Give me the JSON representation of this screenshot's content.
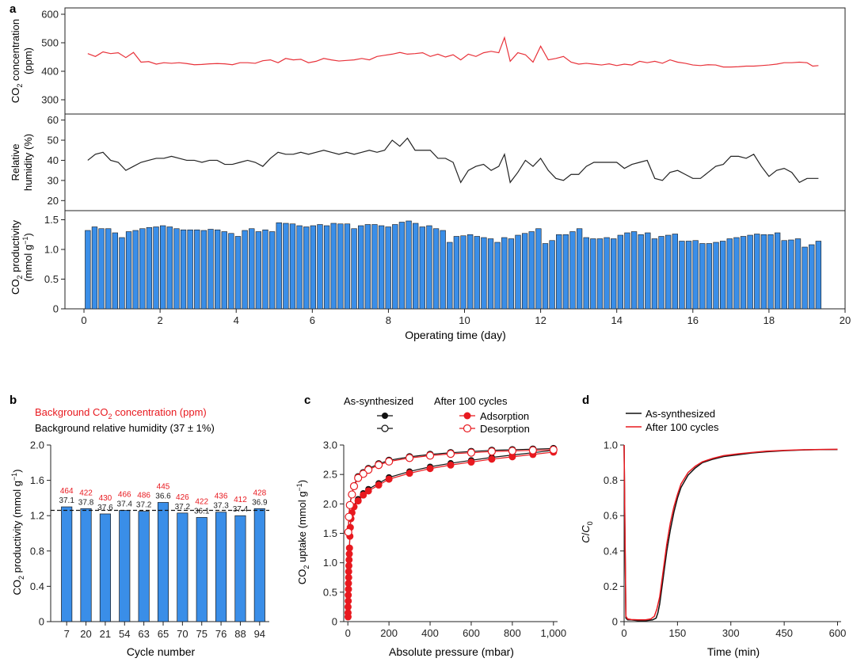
{
  "panels": {
    "a": {
      "label": "a",
      "co2": {
        "ylabel_main": "CO",
        "ylabel_sub": "2",
        "ylabel_rest": " concentration",
        "ylabel_unit": "(ppm)",
        "ylim": [
          250,
          600
        ],
        "yticks": [
          300,
          400,
          500,
          600
        ],
        "color": "#e8323a",
        "x": [
          0.1,
          0.3,
          0.5,
          0.7,
          0.9,
          1.1,
          1.3,
          1.5,
          1.7,
          1.9,
          2.1,
          2.3,
          2.5,
          2.7,
          2.9,
          3.1,
          3.3,
          3.5,
          3.7,
          3.9,
          4.1,
          4.3,
          4.5,
          4.7,
          4.9,
          5.1,
          5.3,
          5.5,
          5.7,
          5.9,
          6.1,
          6.3,
          6.5,
          6.7,
          6.9,
          7.1,
          7.3,
          7.5,
          7.7,
          7.9,
          8.1,
          8.3,
          8.5,
          8.7,
          8.9,
          9.1,
          9.3,
          9.5,
          9.7,
          9.9,
          10.1,
          10.3,
          10.5,
          10.7,
          10.9,
          11.05,
          11.2,
          11.4,
          11.6,
          11.8,
          12.0,
          12.2,
          12.4,
          12.6,
          12.8,
          13.0,
          13.2,
          13.4,
          13.6,
          13.8,
          14.0,
          14.2,
          14.4,
          14.6,
          14.8,
          15.0,
          15.2,
          15.4,
          15.6,
          15.8,
          16.0,
          16.2,
          16.4,
          16.6,
          16.8,
          17.0,
          17.2,
          17.4,
          17.6,
          17.8,
          18.0,
          18.2,
          18.4,
          18.6,
          18.8,
          19.0,
          19.15,
          19.3
        ],
        "y": [
          462,
          452,
          468,
          462,
          465,
          448,
          466,
          432,
          434,
          425,
          430,
          428,
          430,
          427,
          423,
          424,
          426,
          427,
          426,
          423,
          430,
          430,
          428,
          437,
          440,
          430,
          445,
          440,
          442,
          430,
          435,
          445,
          440,
          436,
          438,
          440,
          445,
          440,
          452,
          456,
          460,
          466,
          460,
          462,
          465,
          452,
          460,
          450,
          458,
          440,
          460,
          452,
          465,
          470,
          465,
          518,
          435,
          465,
          458,
          432,
          488,
          440,
          445,
          452,
          432,
          425,
          428,
          425,
          422,
          426,
          420,
          425,
          422,
          435,
          430,
          435,
          428,
          440,
          432,
          428,
          422,
          420,
          423,
          422,
          415,
          415,
          416,
          418,
          418,
          420,
          422,
          425,
          430,
          430,
          432,
          430,
          418,
          420
        ]
      },
      "rh": {
        "ylabel_line1": "Relative",
        "ylabel_line2": "humidity (%)",
        "ylim": [
          15,
          63
        ],
        "yticks": [
          20,
          30,
          40,
          50,
          60
        ],
        "color": "#222222",
        "x": [
          0.1,
          0.3,
          0.5,
          0.7,
          0.9,
          1.1,
          1.3,
          1.5,
          1.7,
          1.9,
          2.1,
          2.3,
          2.5,
          2.7,
          2.9,
          3.1,
          3.3,
          3.5,
          3.7,
          3.9,
          4.1,
          4.3,
          4.5,
          4.7,
          4.9,
          5.1,
          5.3,
          5.5,
          5.7,
          5.9,
          6.1,
          6.3,
          6.5,
          6.7,
          6.9,
          7.1,
          7.3,
          7.5,
          7.7,
          7.9,
          8.1,
          8.3,
          8.5,
          8.7,
          8.9,
          9.1,
          9.3,
          9.5,
          9.7,
          9.9,
          10.1,
          10.3,
          10.5,
          10.7,
          10.9,
          11.05,
          11.2,
          11.4,
          11.6,
          11.8,
          12.0,
          12.2,
          12.4,
          12.6,
          12.8,
          13.0,
          13.2,
          13.4,
          13.6,
          13.8,
          14.0,
          14.2,
          14.4,
          14.6,
          14.8,
          15.0,
          15.2,
          15.4,
          15.6,
          15.8,
          16.0,
          16.2,
          16.4,
          16.6,
          16.8,
          17.0,
          17.2,
          17.4,
          17.6,
          17.8,
          18.0,
          18.2,
          18.4,
          18.6,
          18.8,
          19.0,
          19.15,
          19.3
        ],
        "y": [
          40,
          43,
          44,
          40,
          39,
          35,
          37,
          39,
          40,
          41,
          41,
          42,
          41,
          40,
          40,
          39,
          40,
          40,
          38,
          38,
          39,
          40,
          39,
          37,
          41,
          44,
          43,
          43,
          44,
          43,
          44,
          45,
          44,
          43,
          44,
          43,
          44,
          45,
          44,
          45,
          50,
          47,
          51,
          45,
          45,
          45,
          41,
          41,
          39,
          29,
          35,
          37,
          38,
          35,
          37,
          43,
          29,
          34,
          40,
          37,
          41,
          35,
          31,
          30,
          33,
          33,
          37,
          39,
          39,
          39,
          39,
          36,
          38,
          39,
          40,
          31,
          30,
          34,
          35,
          33,
          31,
          31,
          34,
          37,
          38,
          42,
          42,
          41,
          43,
          37,
          32,
          35,
          36,
          34,
          29,
          31,
          31,
          31
        ]
      },
      "prod": {
        "ylabel_main": "CO",
        "ylabel_sub": "2",
        "ylabel_rest": " productivity",
        "ylabel_unit": "(mmol g",
        "ylim": [
          0,
          1.6
        ],
        "yticks": [
          "0",
          "0.5",
          "1.0",
          "1.5"
        ],
        "ytick_values": [
          0,
          0.5,
          1.0,
          1.5
        ],
        "bar_color": "#3a8ee8",
        "values": [
          1.32,
          1.38,
          1.35,
          1.35,
          1.28,
          1.2,
          1.3,
          1.32,
          1.35,
          1.37,
          1.38,
          1.4,
          1.38,
          1.35,
          1.33,
          1.33,
          1.33,
          1.32,
          1.34,
          1.33,
          1.3,
          1.27,
          1.22,
          1.32,
          1.35,
          1.3,
          1.33,
          1.3,
          1.45,
          1.44,
          1.43,
          1.4,
          1.38,
          1.4,
          1.42,
          1.4,
          1.44,
          1.43,
          1.43,
          1.35,
          1.4,
          1.42,
          1.42,
          1.4,
          1.38,
          1.42,
          1.46,
          1.48,
          1.44,
          1.38,
          1.4,
          1.35,
          1.32,
          1.12,
          1.22,
          1.23,
          1.25,
          1.22,
          1.2,
          1.18,
          1.12,
          1.2,
          1.18,
          1.24,
          1.27,
          1.3,
          1.35,
          1.1,
          1.15,
          1.25,
          1.25,
          1.3,
          1.35,
          1.2,
          1.18,
          1.18,
          1.2,
          1.18,
          1.24,
          1.28,
          1.3,
          1.25,
          1.28,
          1.18,
          1.22,
          1.24,
          1.26,
          1.14,
          1.14,
          1.15,
          1.1,
          1.1,
          1.12,
          1.14,
          1.18,
          1.2,
          1.22,
          1.24,
          1.26,
          1.25,
          1.25,
          1.28,
          1.15,
          1.16,
          1.18,
          1.04,
          1.08,
          1.14
        ],
        "xlabel": "Operating time (day)",
        "xlim": [
          -0.5,
          20
        ],
        "xticks": [
          "0",
          "2",
          "4",
          "6",
          "8",
          "10",
          "12",
          "14",
          "16",
          "18",
          "20"
        ],
        "xtick_values": [
          0,
          2,
          4,
          6,
          8,
          10,
          12,
          14,
          16,
          18,
          20
        ]
      }
    },
    "b": {
      "label": "b",
      "legend_red_main": "Background CO",
      "legend_red_sub": "2",
      "legend_red_rest": " concentration (ppm)",
      "legend_black": "Background relative humidity (37 ± 1%)",
      "ylabel_main": "CO",
      "ylabel_sub": "2",
      "ylabel_rest": " productivity (mmol g",
      "xlabel": "Cycle number",
      "ylim": [
        0,
        2.0
      ],
      "yticks": [
        "0",
        "0.4",
        "0.8",
        "1.2",
        "1.6",
        "2.0"
      ],
      "ytick_values": [
        0,
        0.4,
        0.8,
        1.2,
        1.6,
        2.0
      ],
      "dashed_line": 1.26,
      "bar_color": "#3a8ee8",
      "categories": [
        "7",
        "20",
        "21",
        "54",
        "63",
        "65",
        "70",
        "75",
        "76",
        "88",
        "94"
      ],
      "values": [
        1.3,
        1.28,
        1.22,
        1.26,
        1.25,
        1.35,
        1.23,
        1.18,
        1.24,
        1.2,
        1.28
      ],
      "ppm_labels": [
        "464",
        "422",
        "430",
        "466",
        "486",
        "445",
        "426",
        "422",
        "436",
        "412",
        "428"
      ],
      "rh_labels": [
        "37.1",
        "37.8",
        "37.6",
        "37.4",
        "37.2",
        "36.6",
        "37.2",
        "36.1",
        "37.3",
        "37.4",
        "36.9"
      ]
    },
    "c": {
      "label": "c",
      "legend_head_1": "As-synthesized",
      "legend_head_2": "After 100 cycles",
      "legend_adsorption": "Adsorption",
      "legend_desorption": "Desorption",
      "ylabel_main": "CO",
      "ylabel_sub": "2",
      "ylabel_rest": " uptake (mmol g",
      "xlabel": "Absolute pressure (mbar)",
      "xlim": [
        -20,
        1020
      ],
      "ylim": [
        0,
        3.0
      ],
      "xticks": [
        "0",
        "200",
        "400",
        "600",
        "800",
        "1,000"
      ],
      "xtick_values": [
        0,
        200,
        400,
        600,
        800,
        1000
      ],
      "yticks": [
        "0",
        "0.5",
        "1.0",
        "1.5",
        "2.0",
        "2.5",
        "3.0"
      ],
      "ytick_values": [
        0,
        0.5,
        1.0,
        1.5,
        2.0,
        2.5,
        3.0
      ],
      "ads_x": [
        1,
        1,
        1,
        2,
        2,
        3,
        3,
        4,
        4,
        5,
        6,
        7,
        8,
        10,
        12,
        15,
        20,
        30,
        50,
        75,
        100,
        150,
        200,
        300,
        400,
        500,
        600,
        700,
        800,
        900,
        1000
      ],
      "ads_y": [
        0.08,
        0.15,
        0.25,
        0.35,
        0.45,
        0.55,
        0.65,
        0.75,
        0.85,
        0.95,
        1.05,
        1.15,
        1.25,
        1.45,
        1.6,
        1.75,
        1.85,
        1.95,
        2.05,
        2.15,
        2.22,
        2.32,
        2.42,
        2.52,
        2.6,
        2.66,
        2.71,
        2.76,
        2.8,
        2.84,
        2.88
      ],
      "des_x": [
        1000,
        900,
        800,
        700,
        600,
        500,
        400,
        300,
        200,
        150,
        100,
        75,
        50,
        30,
        20,
        10,
        5,
        2
      ],
      "des_y": [
        2.92,
        2.91,
        2.9,
        2.89,
        2.87,
        2.85,
        2.82,
        2.78,
        2.72,
        2.66,
        2.58,
        2.51,
        2.44,
        2.3,
        2.16,
        1.98,
        1.78,
        1.52
      ],
      "ads_color": "#e8191f",
      "black_color": "#111111"
    },
    "d": {
      "label": "d",
      "legend_black": "As-synthesized",
      "legend_red": "After 100 cycles",
      "ylabel_c": "C",
      "ylabel_slash": "/",
      "ylabel_c0": "C",
      "ylabel_sub": "0",
      "xlabel": "Time (min)",
      "xlim": [
        0,
        610
      ],
      "ylim": [
        0,
        1.0
      ],
      "xticks": [
        "0",
        "150",
        "300",
        "450",
        "600"
      ],
      "xtick_values": [
        0,
        150,
        300,
        450,
        600
      ],
      "yticks": [
        "0",
        "0.2",
        "0.4",
        "0.6",
        "0.8",
        "1.0"
      ],
      "ytick_values": [
        0,
        0.2,
        0.4,
        0.6,
        0.8,
        1.0
      ],
      "black_color": "#111111",
      "red_color": "#e8191f",
      "black_x": [
        0,
        2,
        5,
        10,
        20,
        40,
        60,
        80,
        90,
        95,
        100,
        110,
        120,
        130,
        140,
        150,
        160,
        180,
        200,
        220,
        250,
        280,
        320,
        360,
        400,
        450,
        500,
        550,
        600
      ],
      "black_y": [
        1.0,
        0.55,
        0.02,
        0.01,
        0.01,
        0.005,
        0.005,
        0.01,
        0.02,
        0.05,
        0.1,
        0.25,
        0.4,
        0.52,
        0.62,
        0.7,
        0.76,
        0.83,
        0.87,
        0.9,
        0.92,
        0.935,
        0.945,
        0.955,
        0.962,
        0.968,
        0.972,
        0.974,
        0.975
      ],
      "red_x": [
        0,
        2,
        5,
        10,
        20,
        40,
        60,
        75,
        85,
        92,
        100,
        110,
        120,
        130,
        140,
        150,
        160,
        180,
        200,
        220,
        250,
        280,
        320,
        360,
        400,
        450,
        500,
        550,
        600
      ],
      "red_y": [
        1.0,
        0.6,
        0.03,
        0.015,
        0.012,
        0.01,
        0.01,
        0.015,
        0.03,
        0.07,
        0.14,
        0.29,
        0.44,
        0.56,
        0.65,
        0.72,
        0.78,
        0.845,
        0.88,
        0.905,
        0.925,
        0.94,
        0.95,
        0.958,
        0.965,
        0.97,
        0.973,
        0.975,
        0.976
      ]
    }
  },
  "chart_data": [
    {
      "panel": "a-top",
      "type": "line",
      "ylabel": "CO2 concentration (ppm)",
      "ylim": [
        250,
        600
      ],
      "series": [
        {
          "name": "",
          "color": "#e8323a"
        }
      ]
    },
    {
      "panel": "a-middle",
      "type": "line",
      "ylabel": "Relative humidity (%)",
      "ylim": [
        15,
        63
      ]
    },
    {
      "panel": "a-bottom",
      "type": "bar",
      "ylabel": "CO2 productivity (mmol g−1)",
      "xlabel": "Operating time (day)",
      "ylim": [
        0,
        1.6
      ],
      "xlim": [
        0,
        20
      ]
    },
    {
      "panel": "b",
      "type": "bar",
      "categories": [
        "7",
        "20",
        "21",
        "54",
        "63",
        "65",
        "70",
        "75",
        "76",
        "88",
        "94"
      ],
      "values": [
        1.3,
        1.28,
        1.22,
        1.26,
        1.25,
        1.35,
        1.23,
        1.18,
        1.24,
        1.2,
        1.28
      ],
      "xlabel": "Cycle number",
      "ylabel": "CO2 productivity (mmol g−1)",
      "ylim": [
        0,
        2.0
      ]
    },
    {
      "panel": "c",
      "type": "scatter",
      "xlabel": "Absolute pressure (mbar)",
      "ylabel": "CO2 uptake (mmol g−1)",
      "xlim": [
        0,
        1000
      ],
      "ylim": [
        0,
        3.0
      ],
      "series": [
        {
          "name": "Adsorption"
        },
        {
          "name": "Desorption"
        }
      ]
    },
    {
      "panel": "d",
      "type": "line",
      "xlabel": "Time (min)",
      "ylabel": "C/C0",
      "xlim": [
        0,
        600
      ],
      "ylim": [
        0,
        1.0
      ],
      "series": [
        {
          "name": "As-synthesized"
        },
        {
          "name": "After 100 cycles"
        }
      ]
    }
  ]
}
